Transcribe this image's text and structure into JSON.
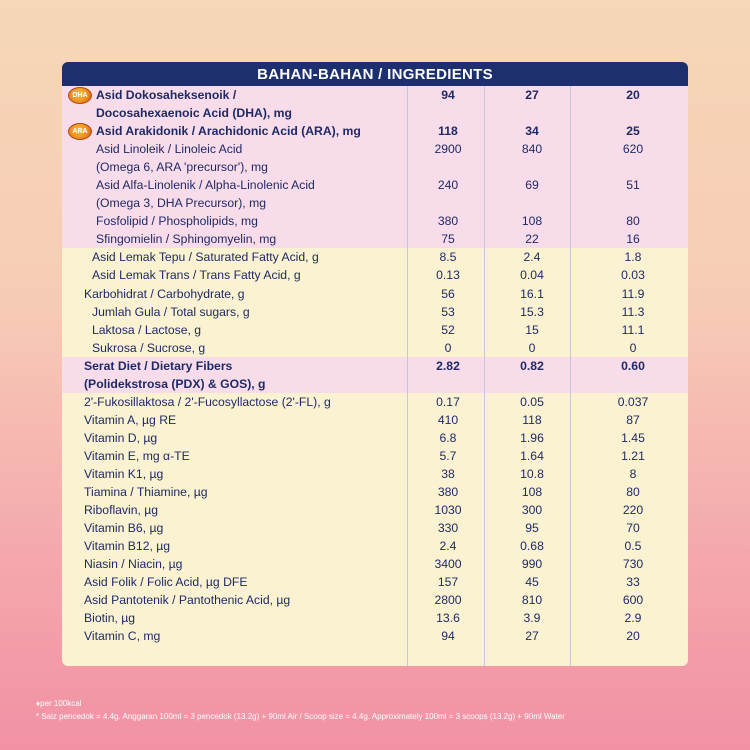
{
  "header": {
    "title": "BAHAN-BAHAN / INGREDIENTS"
  },
  "badges": {
    "dha": "DHA",
    "ara": "ARA"
  },
  "rows": [
    {
      "label": "Asid Dokosaheksenoik /",
      "v1": "94",
      "v2": "27",
      "v3": "20",
      "style": "pink bold",
      "indent": 34,
      "badge": "dha"
    },
    {
      "label": "Docosahexaenoic Acid (DHA), mg",
      "v1": "",
      "v2": "",
      "v3": "",
      "style": "pink bold",
      "indent": 34
    },
    {
      "label": "Asid Arakidonik / Arachidonic Acid (ARA), mg",
      "v1": "118",
      "v2": "34",
      "v3": "25",
      "style": "pink bold",
      "indent": 34,
      "badge": "ara"
    },
    {
      "label": "Asid Linoleik / Linoleic Acid",
      "v1": "2900",
      "v2": "840",
      "v3": "620",
      "style": "pink",
      "indent": 34
    },
    {
      "label": "(Omega 6, ARA 'precursor'), mg",
      "v1": "",
      "v2": "",
      "v3": "",
      "style": "pink",
      "indent": 34
    },
    {
      "label": "Asid Alfa-Linolenik / Alpha-Linolenic Acid",
      "v1": "240",
      "v2": "69",
      "v3": "51",
      "style": "pink",
      "indent": 34
    },
    {
      "label": "(Omega 3, DHA Precursor), mg",
      "v1": "",
      "v2": "",
      "v3": "",
      "style": "pink",
      "indent": 34
    },
    {
      "label": "Fosfolipid / Phospholipids, mg",
      "v1": "380",
      "v2": "108",
      "v3": "80",
      "style": "pink",
      "indent": 34
    },
    {
      "label": "Sfingomielin / Sphingomyelin, mg",
      "v1": "75",
      "v2": "22",
      "v3": "16",
      "style": "pink",
      "indent": 34
    },
    {
      "label": "Asid Lemak Tepu / Saturated Fatty Acid, g",
      "v1": "8.5",
      "v2": "2.4",
      "v3": "1.8",
      "style": "",
      "indent": 30
    },
    {
      "label": "Asid Lemak Trans / Trans Fatty Acid, g",
      "v1": "0.13",
      "v2": "0.04",
      "v3": "0.03",
      "style": "",
      "indent": 30
    },
    {
      "label": "Karbohidrat / Carbohydrate, g",
      "v1": "56",
      "v2": "16.1",
      "v3": "11.9",
      "style": "",
      "indent": 22
    },
    {
      "label": "Jumlah Gula / Total sugars, g",
      "v1": "53",
      "v2": "15.3",
      "v3": "11.3",
      "style": "",
      "indent": 30
    },
    {
      "label": "Laktosa / Lactose, g",
      "v1": "52",
      "v2": "15",
      "v3": "11.1",
      "style": "",
      "indent": 30
    },
    {
      "label": "Sukrosa / Sucrose, g",
      "v1": "0",
      "v2": "0",
      "v3": "0",
      "style": "",
      "indent": 30
    },
    {
      "label": "Serat Diet / Dietary Fibers",
      "v1": "2.82",
      "v2": "0.82",
      "v3": "0.60",
      "style": "pink bold",
      "indent": 22
    },
    {
      "label": "(Polidekstrosa (PDX) & GOS), g",
      "v1": "",
      "v2": "",
      "v3": "",
      "style": "pink bold",
      "indent": 22
    },
    {
      "label": "2'-Fukosillaktosa / 2'-Fucosyllactose (2'-FL), g",
      "v1": "0.17",
      "v2": "0.05",
      "v3": "0.037",
      "style": "",
      "indent": 22
    },
    {
      "label": "Vitamin A, µg RE",
      "v1": "410",
      "v2": "118",
      "v3": "87",
      "style": "",
      "indent": 22
    },
    {
      "label": "Vitamin D, µg",
      "v1": "6.8",
      "v2": "1.96",
      "v3": "1.45",
      "style": "",
      "indent": 22
    },
    {
      "label": "Vitamin E, mg α-TE",
      "v1": "5.7",
      "v2": "1.64",
      "v3": "1.21",
      "style": "",
      "indent": 22
    },
    {
      "label": "Vitamin K1, µg",
      "v1": "38",
      "v2": "10.8",
      "v3": "8",
      "style": "",
      "indent": 22
    },
    {
      "label": "Tiamina / Thiamine, µg",
      "v1": "380",
      "v2": "108",
      "v3": "80",
      "style": "",
      "indent": 22
    },
    {
      "label": "Riboflavin, µg",
      "v1": "1030",
      "v2": "300",
      "v3": "220",
      "style": "",
      "indent": 22
    },
    {
      "label": "Vitamin B6, µg",
      "v1": "330",
      "v2": "95",
      "v3": "70",
      "style": "",
      "indent": 22
    },
    {
      "label": "Vitamin B12, µg",
      "v1": "2.4",
      "v2": "0.68",
      "v3": "0.5",
      "style": "",
      "indent": 22
    },
    {
      "label": "Niasin / Niacin, µg",
      "v1": "3400",
      "v2": "990",
      "v3": "730",
      "style": "",
      "indent": 22
    },
    {
      "label": "Asid Folik / Folic Acid, µg DFE",
      "v1": "157",
      "v2": "45",
      "v3": "33",
      "style": "",
      "indent": 22
    },
    {
      "label": "Asid Pantotenik / Pantothenic Acid, µg",
      "v1": "2800",
      "v2": "810",
      "v3": "600",
      "style": "",
      "indent": 22
    },
    {
      "label": "Biotin, µg",
      "v1": "13.6",
      "v2": "3.9",
      "v3": "2.9",
      "style": "",
      "indent": 22
    },
    {
      "label": "Vitamin C, mg",
      "v1": "94",
      "v2": "27",
      "v3": "20",
      "style": "",
      "indent": 22
    }
  ],
  "footer": {
    "line1": "♦per 100kcal",
    "line2": "* Saiz pencedok = 4.4g. Anggaran 100ml = 3 pencedok (13.2g) + 90ml Air / Scoop size = 4.4g. Approximately 100ml = 3 scoops (13.2g) + 90ml Water"
  }
}
